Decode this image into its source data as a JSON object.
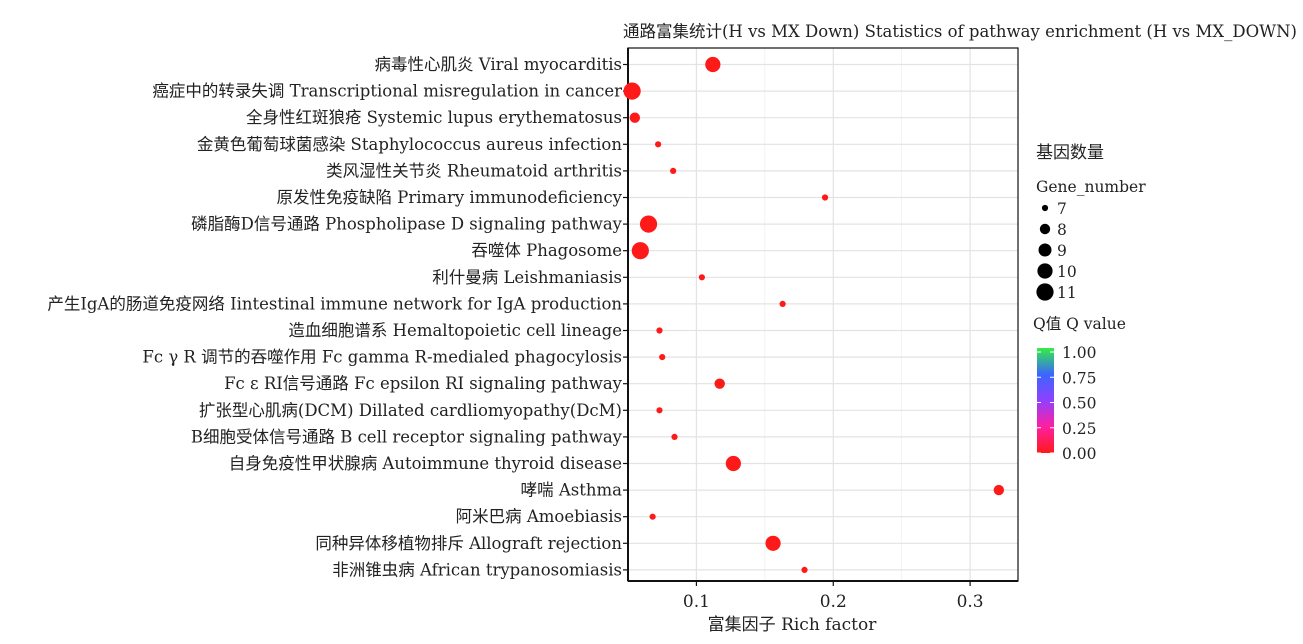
{
  "chart_data": {
    "type": "scatter",
    "title": "通路富集统计(H vs MX Down) Statistics of pathway enrichment (H vs MX_DOWN)",
    "xlabel": "富集因子 Rich factor",
    "ylabel": "",
    "xlim": [
      0.05,
      0.335
    ],
    "xticks": [
      0.1,
      0.2,
      0.3
    ],
    "xtick_labels": [
      "0.1",
      "0.2",
      "0.3"
    ],
    "grid": true,
    "legend_position": "right",
    "categories": [
      "病毒性心肌炎 Viral myocarditis",
      "癌症中的转录失调 Transcriptional misregulation in cancer",
      "全身性红斑狼疮 Systemic lupus erythematosus",
      "金黄色葡萄球菌感染 Staphylococcus aureus infection",
      "类风湿性关节炎 Rheumatoid arthritis",
      "原发性免疫缺陷 Primary immunodeficiency",
      "磷脂酶D信号通路 Phospholipase D signaling pathway",
      "吞噬体 Phagosome",
      "利什曼病 Leishmaniasis",
      "产生IgA的肠道免疫网络 Iintestinal immune network for IgA production",
      "造血细胞谱系 Hemaltopoietic cell lineage",
      "Fc γ R 调节的吞噬作用 Fc gamma R-medialed phagocylosis",
      "Fc ε RI信号通路 Fc epsilon RI signaling pathway",
      "扩张型心肌病(DCM) Dillated cardliomyopathy(DcM)",
      "B细胞受体信号通路 B cell receptor signaling pathway",
      "自身免疫性甲状腺病 Autoimmune thyroid disease",
      "哮喘 Asthma",
      "阿米巴病 Amoebiasis",
      "同种异体移植物排斥 Allograft rejection",
      "非洲锥虫病 African trypanosomiasis"
    ],
    "points": [
      {
        "x": 0.112,
        "gene_number": 10,
        "q_value": 0.0
      },
      {
        "x": 0.053,
        "gene_number": 11,
        "q_value": 0.0
      },
      {
        "x": 0.055,
        "gene_number": 8,
        "q_value": 0.0
      },
      {
        "x": 0.072,
        "gene_number": 7,
        "q_value": 0.02
      },
      {
        "x": 0.083,
        "gene_number": 7,
        "q_value": 0.02
      },
      {
        "x": 0.194,
        "gene_number": 7,
        "q_value": 0.02
      },
      {
        "x": 0.065,
        "gene_number": 11,
        "q_value": 0.0
      },
      {
        "x": 0.059,
        "gene_number": 11,
        "q_value": 0.0
      },
      {
        "x": 0.104,
        "gene_number": 7,
        "q_value": 0.02
      },
      {
        "x": 0.163,
        "gene_number": 7,
        "q_value": 0.02
      },
      {
        "x": 0.073,
        "gene_number": 7,
        "q_value": 0.02
      },
      {
        "x": 0.075,
        "gene_number": 7,
        "q_value": 0.02
      },
      {
        "x": 0.117,
        "gene_number": 8,
        "q_value": 0.0
      },
      {
        "x": 0.073,
        "gene_number": 7,
        "q_value": 0.02
      },
      {
        "x": 0.084,
        "gene_number": 7,
        "q_value": 0.02
      },
      {
        "x": 0.127,
        "gene_number": 10,
        "q_value": 0.0
      },
      {
        "x": 0.321,
        "gene_number": 8,
        "q_value": 0.0
      },
      {
        "x": 0.068,
        "gene_number": 7,
        "q_value": 0.02
      },
      {
        "x": 0.156,
        "gene_number": 10,
        "q_value": 0.0
      },
      {
        "x": 0.179,
        "gene_number": 7,
        "q_value": 0.02
      }
    ],
    "size_legend": {
      "title_cn": "基因数量",
      "title": "Gene_number",
      "levels": [
        7,
        8,
        9,
        10,
        11
      ],
      "labels": [
        "7",
        "8",
        "9",
        "10",
        "11"
      ]
    },
    "color_legend": {
      "title": "Q值 Q value",
      "range": [
        0.0,
        1.0
      ],
      "ticks": [
        "1.00",
        "0.75",
        "0.50",
        "0.25",
        "0.00"
      ],
      "tick_values": [
        1.0,
        0.75,
        0.5,
        0.25,
        0.0
      ],
      "colors": [
        "#ff1a1a",
        "#ff1fa0",
        "#9040ff",
        "#3a66ff",
        "#33ee44"
      ]
    },
    "colors": {
      "point": "#ff1a1a",
      "panel_border": "#111111",
      "grid": "#e3e3e3"
    }
  }
}
